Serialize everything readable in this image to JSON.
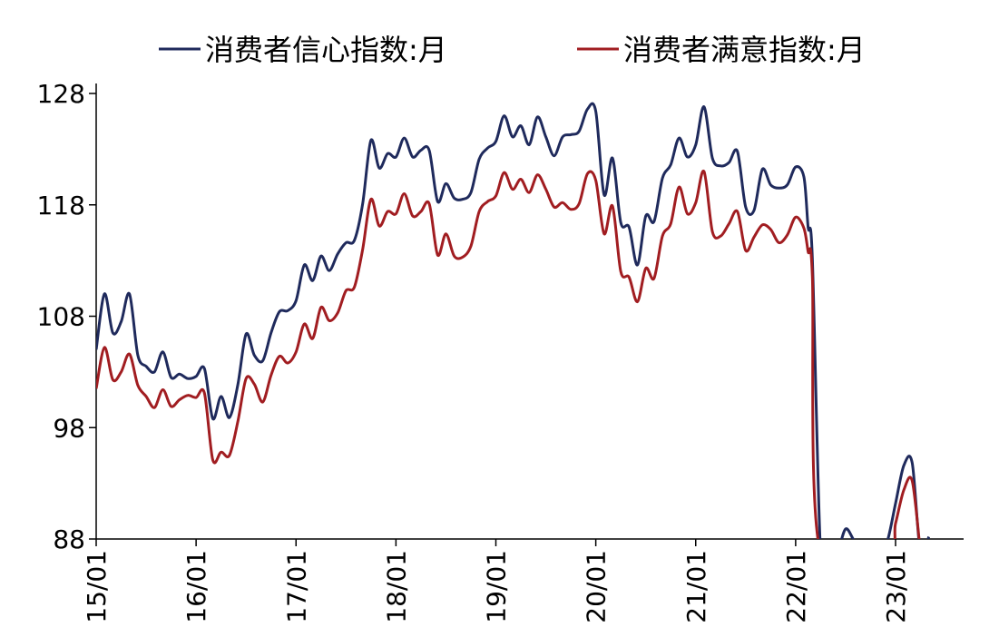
{
  "chart_data": {
    "type": "line",
    "title": "",
    "xlabel": "",
    "ylabel": "",
    "ylim": [
      88,
      128
    ],
    "y_ticks": [
      "88",
      "98",
      "108",
      "118",
      "128"
    ],
    "x_range": [
      2015.0,
      2023.6
    ],
    "x_ticks": [
      {
        "label": "15/01",
        "value": 2015.0
      },
      {
        "label": "16/01",
        "value": 2016.0
      },
      {
        "label": "17/01",
        "value": 2017.0
      },
      {
        "label": "18/01",
        "value": 2018.0
      },
      {
        "label": "19/01",
        "value": 2019.0
      },
      {
        "label": "20/01",
        "value": 2020.0
      },
      {
        "label": "21/01",
        "value": 2021.0
      },
      {
        "label": "22/01",
        "value": 2022.0
      },
      {
        "label": "23/01",
        "value": 2023.0
      }
    ],
    "grid": false,
    "legend_position": "top",
    "series": [
      {
        "name": "消费者信心指数:月",
        "color": "#1f2a5c",
        "points": [
          [
            2015.0,
            105.0
          ],
          [
            2015.083,
            110.0
          ],
          [
            2015.167,
            106.5
          ],
          [
            2015.25,
            107.5
          ],
          [
            2015.333,
            110.0
          ],
          [
            2015.417,
            104.5
          ],
          [
            2015.5,
            103.5
          ],
          [
            2015.583,
            103.0
          ],
          [
            2015.667,
            104.8
          ],
          [
            2015.75,
            102.5
          ],
          [
            2015.833,
            102.8
          ],
          [
            2015.917,
            102.4
          ],
          [
            2016.0,
            102.6
          ],
          [
            2016.083,
            103.3
          ],
          [
            2016.167,
            98.8
          ],
          [
            2016.25,
            100.8
          ],
          [
            2016.333,
            98.9
          ],
          [
            2016.417,
            101.8
          ],
          [
            2016.5,
            106.4
          ],
          [
            2016.583,
            104.5
          ],
          [
            2016.667,
            104.0
          ],
          [
            2016.75,
            106.5
          ],
          [
            2016.833,
            108.4
          ],
          [
            2016.917,
            108.5
          ],
          [
            2017.0,
            109.4
          ],
          [
            2017.083,
            112.6
          ],
          [
            2017.167,
            111.2
          ],
          [
            2017.25,
            113.4
          ],
          [
            2017.333,
            112.1
          ],
          [
            2017.417,
            113.6
          ],
          [
            2017.5,
            114.6
          ],
          [
            2017.583,
            114.8
          ],
          [
            2017.667,
            118.1
          ],
          [
            2017.75,
            123.8
          ],
          [
            2017.833,
            121.3
          ],
          [
            2017.917,
            122.6
          ],
          [
            2018.0,
            122.3
          ],
          [
            2018.083,
            124.0
          ],
          [
            2018.167,
            122.3
          ],
          [
            2018.25,
            122.9
          ],
          [
            2018.333,
            122.9
          ],
          [
            2018.417,
            118.3
          ],
          [
            2018.5,
            119.9
          ],
          [
            2018.583,
            118.6
          ],
          [
            2018.667,
            118.5
          ],
          [
            2018.75,
            119.1
          ],
          [
            2018.833,
            122.1
          ],
          [
            2018.917,
            123.1
          ],
          [
            2019.0,
            123.7
          ],
          [
            2019.083,
            126.0
          ],
          [
            2019.167,
            124.1
          ],
          [
            2019.25,
            125.1
          ],
          [
            2019.333,
            123.4
          ],
          [
            2019.417,
            125.9
          ],
          [
            2019.5,
            124.1
          ],
          [
            2019.583,
            122.4
          ],
          [
            2019.667,
            124.1
          ],
          [
            2019.75,
            124.3
          ],
          [
            2019.833,
            124.6
          ],
          [
            2019.917,
            126.6
          ],
          [
            2020.0,
            126.4
          ],
          [
            2020.083,
            118.9
          ],
          [
            2020.167,
            122.2
          ],
          [
            2020.25,
            116.4
          ],
          [
            2020.333,
            116.0
          ],
          [
            2020.417,
            112.6
          ],
          [
            2020.5,
            117.0
          ],
          [
            2020.583,
            116.5
          ],
          [
            2020.667,
            120.4
          ],
          [
            2020.75,
            121.6
          ],
          [
            2020.833,
            124.0
          ],
          [
            2020.917,
            122.3
          ],
          [
            2021.0,
            123.4
          ],
          [
            2021.083,
            126.8
          ],
          [
            2021.167,
            122.2
          ],
          [
            2021.25,
            121.5
          ],
          [
            2021.333,
            121.8
          ],
          [
            2021.417,
            122.8
          ],
          [
            2021.5,
            117.8
          ],
          [
            2021.583,
            117.5
          ],
          [
            2021.667,
            121.2
          ],
          [
            2021.75,
            119.8
          ],
          [
            2021.833,
            119.5
          ],
          [
            2021.917,
            119.8
          ],
          [
            2022.0,
            121.4
          ],
          [
            2022.083,
            120.5
          ],
          [
            2022.125,
            116.0
          ],
          [
            2022.167,
            113.2
          ],
          [
            2022.25,
            86.7
          ],
          [
            2022.333,
            86.8
          ],
          [
            2022.417,
            86.8
          ],
          [
            2022.5,
            88.9
          ],
          [
            2022.583,
            87.9
          ],
          [
            2022.667,
            87.0
          ],
          [
            2022.75,
            86.9
          ],
          [
            2022.833,
            86.9
          ],
          [
            2022.917,
            87.8
          ],
          [
            2023.0,
            91.2
          ],
          [
            2023.083,
            94.6
          ],
          [
            2023.167,
            94.8
          ],
          [
            2023.25,
            86.7
          ],
          [
            2023.333,
            88.2
          ]
        ]
      },
      {
        "name": "消费者满意指数:月",
        "color": "#a11d21",
        "points": [
          [
            2015.0,
            101.5
          ],
          [
            2015.083,
            105.2
          ],
          [
            2015.167,
            102.3
          ],
          [
            2015.25,
            103.0
          ],
          [
            2015.333,
            104.6
          ],
          [
            2015.417,
            101.8
          ],
          [
            2015.5,
            100.8
          ],
          [
            2015.583,
            99.8
          ],
          [
            2015.667,
            101.4
          ],
          [
            2015.75,
            99.9
          ],
          [
            2015.833,
            100.5
          ],
          [
            2015.917,
            100.9
          ],
          [
            2016.0,
            100.7
          ],
          [
            2016.083,
            101.1
          ],
          [
            2016.167,
            95.1
          ],
          [
            2016.25,
            95.8
          ],
          [
            2016.333,
            95.5
          ],
          [
            2016.417,
            98.5
          ],
          [
            2016.5,
            102.4
          ],
          [
            2016.583,
            101.9
          ],
          [
            2016.667,
            100.3
          ],
          [
            2016.75,
            102.7
          ],
          [
            2016.833,
            104.4
          ],
          [
            2016.917,
            103.8
          ],
          [
            2017.0,
            104.8
          ],
          [
            2017.083,
            107.3
          ],
          [
            2017.167,
            106.0
          ],
          [
            2017.25,
            108.8
          ],
          [
            2017.333,
            107.6
          ],
          [
            2017.417,
            108.3
          ],
          [
            2017.5,
            110.3
          ],
          [
            2017.583,
            110.6
          ],
          [
            2017.667,
            114.0
          ],
          [
            2017.75,
            118.5
          ],
          [
            2017.833,
            116.1
          ],
          [
            2017.917,
            117.4
          ],
          [
            2018.0,
            117.2
          ],
          [
            2018.083,
            119.0
          ],
          [
            2018.167,
            117.0
          ],
          [
            2018.25,
            117.4
          ],
          [
            2018.333,
            118.1
          ],
          [
            2018.417,
            113.5
          ],
          [
            2018.5,
            115.4
          ],
          [
            2018.583,
            113.4
          ],
          [
            2018.667,
            113.3
          ],
          [
            2018.75,
            114.3
          ],
          [
            2018.833,
            117.4
          ],
          [
            2018.917,
            118.3
          ],
          [
            2019.0,
            118.8
          ],
          [
            2019.083,
            120.9
          ],
          [
            2019.167,
            119.4
          ],
          [
            2019.25,
            120.3
          ],
          [
            2019.333,
            119.1
          ],
          [
            2019.417,
            120.7
          ],
          [
            2019.5,
            119.4
          ],
          [
            2019.583,
            117.8
          ],
          [
            2019.667,
            118.2
          ],
          [
            2019.75,
            117.6
          ],
          [
            2019.833,
            118.1
          ],
          [
            2019.917,
            120.8
          ],
          [
            2020.0,
            120.2
          ],
          [
            2020.083,
            115.4
          ],
          [
            2020.167,
            117.9
          ],
          [
            2020.25,
            112.0
          ],
          [
            2020.333,
            111.5
          ],
          [
            2020.417,
            109.3
          ],
          [
            2020.5,
            112.3
          ],
          [
            2020.583,
            111.4
          ],
          [
            2020.667,
            115.2
          ],
          [
            2020.75,
            116.3
          ],
          [
            2020.833,
            119.6
          ],
          [
            2020.917,
            117.2
          ],
          [
            2021.0,
            118.2
          ],
          [
            2021.083,
            121.0
          ],
          [
            2021.167,
            115.6
          ],
          [
            2021.25,
            115.2
          ],
          [
            2021.333,
            116.3
          ],
          [
            2021.417,
            117.4
          ],
          [
            2021.5,
            113.9
          ],
          [
            2021.583,
            115.1
          ],
          [
            2021.667,
            116.2
          ],
          [
            2021.75,
            115.8
          ],
          [
            2021.833,
            114.6
          ],
          [
            2021.917,
            115.3
          ],
          [
            2022.0,
            116.9
          ],
          [
            2022.083,
            115.9
          ],
          [
            2022.125,
            113.8
          ],
          [
            2022.167,
            111.6
          ],
          [
            2022.25,
            86.7
          ],
          [
            2022.917,
            86.7
          ],
          [
            2023.0,
            89.4
          ],
          [
            2023.083,
            92.4
          ],
          [
            2023.167,
            93.2
          ],
          [
            2023.25,
            86.7
          ]
        ]
      }
    ]
  }
}
